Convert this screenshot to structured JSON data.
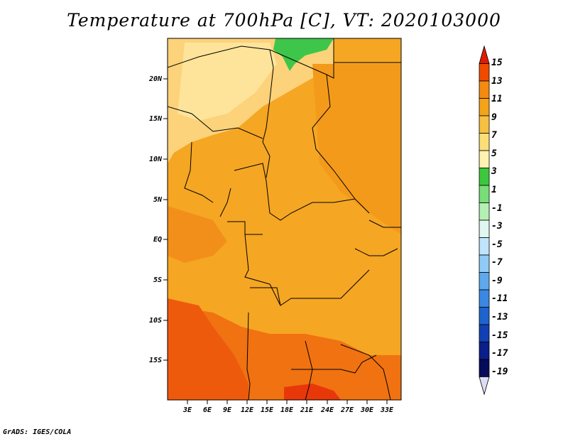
{
  "title": "Temperature at 700hPa [C], VT: 2020103000",
  "credit": "GrADS: IGES/COLA",
  "map": {
    "lat_labels": [
      "20N",
      "15N",
      "10N",
      "5N",
      "EQ",
      "5S",
      "10S",
      "15S"
    ],
    "lon_labels": [
      "3E",
      "6E",
      "9E",
      "12E",
      "15E",
      "18E",
      "21E",
      "24E",
      "27E",
      "30E",
      "33E"
    ]
  },
  "colorbar": {
    "labels": [
      "15",
      "13",
      "11",
      "9",
      "7",
      "5",
      "3",
      "1",
      "-1",
      "-3",
      "-5",
      "-7",
      "-9",
      "-11",
      "-13",
      "-15",
      "-17",
      "-19"
    ],
    "colors": [
      "#e01c00",
      "#f04a00",
      "#f58a10",
      "#f5a318",
      "#f8c040",
      "#fbde78",
      "#fdf2b0",
      "#3cc83c",
      "#78de78",
      "#b4f0b4",
      "#dff7f0",
      "#bfe4fb",
      "#8fcbf6",
      "#5ea9ee",
      "#3a88e4",
      "#1f63d0",
      "#1040b4",
      "#0a1f8c",
      "#050a5a",
      "#dcdcf6"
    ]
  },
  "legend_note": "color scale from 15 to -19"
}
